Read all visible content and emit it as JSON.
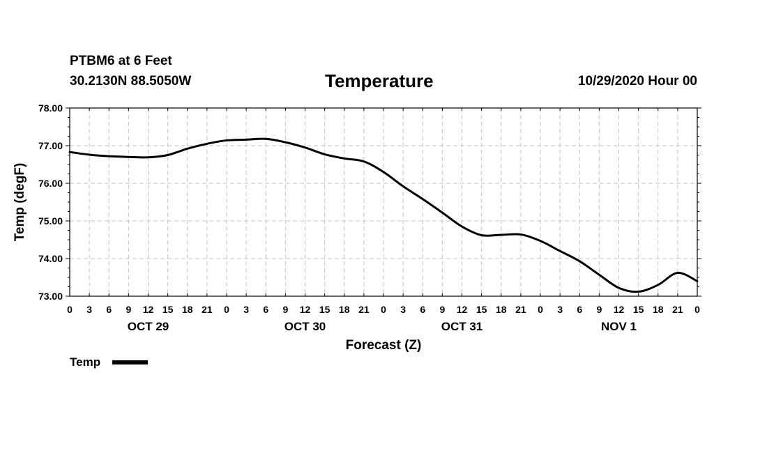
{
  "header": {
    "station": "PTBM6 at 6 Feet",
    "coordinates": "30.2130N 88.5050W",
    "title": "Temperature",
    "issued": "10/29/2020 Hour 00"
  },
  "chart_data": {
    "type": "line",
    "title": "Temperature",
    "xlabel": "Forecast (Z)",
    "ylabel": "Temp (degF)",
    "ylim": [
      73.0,
      78.0
    ],
    "yticks": [
      "73.00",
      "74.00",
      "75.00",
      "76.00",
      "77.00",
      "78.00"
    ],
    "xlim_hours": [
      0,
      96
    ],
    "xtick_labels": [
      "0",
      "3",
      "6",
      "9",
      "12",
      "15",
      "18",
      "21",
      "0",
      "3",
      "6",
      "9",
      "12",
      "15",
      "18",
      "21",
      "0",
      "3",
      "6",
      "9",
      "12",
      "15",
      "18",
      "21",
      "0",
      "3",
      "6",
      "9",
      "12",
      "15",
      "18",
      "21",
      "0"
    ],
    "day_labels": [
      {
        "label": "OCT 29",
        "hour": 12
      },
      {
        "label": "OCT 30",
        "hour": 36
      },
      {
        "label": "OCT 31",
        "hour": 60
      },
      {
        "label": "NOV 1",
        "hour": 84
      }
    ],
    "grid": true,
    "legend": {
      "position": "bottom-left",
      "entries": [
        "Temp"
      ]
    },
    "series": [
      {
        "name": "Temp",
        "color": "#000000",
        "x": [
          0,
          3,
          6,
          9,
          12,
          15,
          18,
          21,
          24,
          27,
          30,
          33,
          36,
          39,
          42,
          45,
          48,
          51,
          54,
          57,
          60,
          63,
          66,
          69,
          72,
          75,
          78,
          81,
          84,
          87,
          90,
          93,
          96
        ],
        "values": [
          76.83,
          76.76,
          76.72,
          76.7,
          76.69,
          76.75,
          76.92,
          77.05,
          77.14,
          77.16,
          77.18,
          77.09,
          76.95,
          76.77,
          76.66,
          76.58,
          76.3,
          75.92,
          75.58,
          75.22,
          74.85,
          74.62,
          74.63,
          74.64,
          74.47,
          74.2,
          73.93,
          73.57,
          73.22,
          73.12,
          73.3,
          73.62,
          73.4
        ]
      }
    ]
  }
}
